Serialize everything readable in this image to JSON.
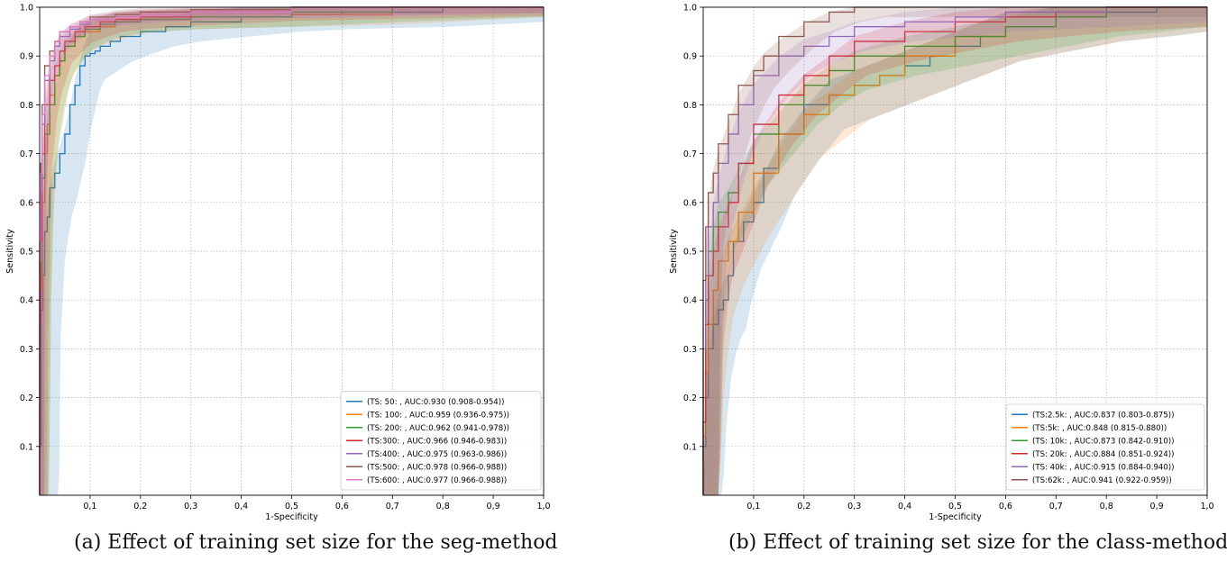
{
  "colors": {
    "series": [
      "#1f77b4",
      "#ff7f0e",
      "#2ca02c",
      "#d62728",
      "#9467bd",
      "#8c564b",
      "#e377c2"
    ],
    "grid": "#b0b0b0",
    "axis": "#000000"
  },
  "chart_data": [
    {
      "id": "a",
      "type": "line",
      "caption": "(a) Effect of training set size for the seg-method",
      "xlabel": "1-Specificity",
      "ylabel": "Sensitivity",
      "xlim": [
        0,
        1.0
      ],
      "ylim": [
        0,
        1.0
      ],
      "xticks": [
        "0,1",
        "0,2",
        "0,3",
        "0,4",
        "0,5",
        "0,6",
        "0,7",
        "0,8",
        "0,9",
        "1,0"
      ],
      "yticks": [
        "0.1",
        "0.2",
        "0.3",
        "0.4",
        "0.5",
        "0.6",
        "0.7",
        "0.8",
        "0.9",
        "1.0"
      ],
      "grid": true,
      "legend_position": "lower-right",
      "series": [
        {
          "name": "(TS: 50: , AUC:0.930 (0.908-0.954))",
          "x": [
            0,
            0.003,
            0.006,
            0.01,
            0.015,
            0.02,
            0.03,
            0.04,
            0.05,
            0.06,
            0.07,
            0.08,
            0.09,
            0.1,
            0.11,
            0.12,
            0.14,
            0.16,
            0.2,
            0.25,
            0.3,
            0.4,
            0.5,
            0.6,
            0.8,
            1.0
          ],
          "y": [
            0,
            0.1,
            0.38,
            0.45,
            0.54,
            0.57,
            0.63,
            0.66,
            0.7,
            0.74,
            0.8,
            0.84,
            0.88,
            0.9,
            0.905,
            0.91,
            0.92,
            0.93,
            0.94,
            0.95,
            0.96,
            0.97,
            0.98,
            0.985,
            0.99,
            1.0
          ],
          "band": [
            0.06,
            0.03
          ]
        },
        {
          "name": "(TS: 100: , AUC:0.959 (0.936-0.975))",
          "x": [
            0,
            0.002,
            0.005,
            0.01,
            0.015,
            0.02,
            0.03,
            0.04,
            0.05,
            0.07,
            0.09,
            0.12,
            0.15,
            0.2,
            0.3,
            0.5,
            0.7,
            1.0
          ],
          "y": [
            0,
            0.16,
            0.42,
            0.6,
            0.7,
            0.76,
            0.82,
            0.86,
            0.89,
            0.92,
            0.94,
            0.95,
            0.96,
            0.97,
            0.975,
            0.98,
            0.985,
            1.0
          ],
          "band": [
            0.03,
            0.02
          ]
        },
        {
          "name": "(TS: 200: , AUC:0.962 (0.941-0.978))",
          "x": [
            0,
            0.002,
            0.005,
            0.01,
            0.02,
            0.03,
            0.04,
            0.05,
            0.07,
            0.09,
            0.12,
            0.15,
            0.2,
            0.3,
            0.5,
            0.7,
            1.0
          ],
          "y": [
            0,
            0.18,
            0.45,
            0.65,
            0.74,
            0.8,
            0.86,
            0.89,
            0.92,
            0.94,
            0.955,
            0.965,
            0.97,
            0.975,
            0.98,
            0.99,
            1.0
          ],
          "band": [
            0.03,
            0.02
          ]
        },
        {
          "name": "(TS:300: , AUC:0.966 (0.946-0.983))",
          "x": [
            0,
            0.002,
            0.005,
            0.01,
            0.02,
            0.03,
            0.04,
            0.05,
            0.07,
            0.09,
            0.12,
            0.15,
            0.2,
            0.3,
            0.5,
            1.0
          ],
          "y": [
            0,
            0.35,
            0.52,
            0.7,
            0.8,
            0.85,
            0.88,
            0.91,
            0.93,
            0.95,
            0.96,
            0.97,
            0.975,
            0.98,
            0.99,
            1.0
          ],
          "band": [
            0.025,
            0.018
          ]
        },
        {
          "name": "(TS:400: , AUC:0.975 (0.963-0.986))",
          "x": [
            0,
            0.002,
            0.005,
            0.01,
            0.02,
            0.03,
            0.04,
            0.06,
            0.08,
            0.1,
            0.15,
            0.2,
            0.3,
            0.5,
            1.0
          ],
          "y": [
            0,
            0.5,
            0.62,
            0.76,
            0.85,
            0.89,
            0.92,
            0.94,
            0.955,
            0.965,
            0.975,
            0.98,
            0.985,
            0.99,
            1.0
          ],
          "band": [
            0.015,
            0.012
          ]
        },
        {
          "name": "(TS:500: , AUC:0.978 (0.966-0.988))",
          "x": [
            0,
            0.002,
            0.005,
            0.01,
            0.02,
            0.03,
            0.04,
            0.06,
            0.08,
            0.1,
            0.15,
            0.2,
            0.3,
            0.5,
            1.0
          ],
          "y": [
            0,
            0.52,
            0.68,
            0.8,
            0.88,
            0.91,
            0.93,
            0.95,
            0.96,
            0.97,
            0.98,
            0.985,
            0.99,
            0.995,
            1.0
          ],
          "band": [
            0.015,
            0.012
          ]
        },
        {
          "name": "(TS:600: , AUC:0.977 (0.966-0.988))",
          "x": [
            0,
            0.002,
            0.005,
            0.01,
            0.02,
            0.03,
            0.04,
            0.06,
            0.08,
            0.1,
            0.15,
            0.2,
            0.3,
            0.5,
            1.0
          ],
          "y": [
            0,
            0.48,
            0.66,
            0.78,
            0.86,
            0.9,
            0.93,
            0.95,
            0.96,
            0.97,
            0.975,
            0.98,
            0.985,
            0.99,
            1.0
          ],
          "band": [
            0.015,
            0.012
          ]
        }
      ]
    },
    {
      "id": "b",
      "type": "line",
      "caption": "(b) Effect of training set size for the class-method",
      "xlabel": "1-Specificity",
      "ylabel": "Sensitivity",
      "xlim": [
        0,
        1.0
      ],
      "ylim": [
        0,
        1.0
      ],
      "xticks": [
        "0,1",
        "0,2",
        "0,3",
        "0,4",
        "0,5",
        "0,6",
        "0,7",
        "0,8",
        "0,9",
        "1,0"
      ],
      "yticks": [
        "0.1",
        "0.2",
        "0.3",
        "0.4",
        "0.5",
        "0.6",
        "0.7",
        "0.8",
        "0.9",
        "1.0"
      ],
      "grid": true,
      "legend_position": "lower-right",
      "series": [
        {
          "name": "(TS:2.5k: , AUC:0.837 (0.803-0.875))",
          "x": [
            0,
            0.005,
            0.01,
            0.02,
            0.03,
            0.04,
            0.05,
            0.06,
            0.08,
            0.1,
            0.12,
            0.15,
            0.2,
            0.25,
            0.3,
            0.35,
            0.4,
            0.45,
            0.5,
            0.55,
            0.6,
            0.7,
            0.8,
            0.9,
            1.0
          ],
          "y": [
            0,
            0.1,
            0.2,
            0.3,
            0.35,
            0.38,
            0.4,
            0.45,
            0.52,
            0.56,
            0.6,
            0.67,
            0.74,
            0.8,
            0.82,
            0.84,
            0.86,
            0.88,
            0.9,
            0.92,
            0.94,
            0.96,
            0.98,
            0.99,
            1.0
          ],
          "band": [
            0.06,
            0.05
          ]
        },
        {
          "name": "(TS:5k: , AUC:0.848 (0.815-0.880))",
          "x": [
            0,
            0.005,
            0.01,
            0.02,
            0.03,
            0.05,
            0.07,
            0.1,
            0.15,
            0.2,
            0.25,
            0.3,
            0.35,
            0.4,
            0.5,
            0.6,
            0.7,
            0.8,
            1.0
          ],
          "y": [
            0,
            0.12,
            0.25,
            0.35,
            0.42,
            0.48,
            0.52,
            0.58,
            0.66,
            0.74,
            0.78,
            0.82,
            0.84,
            0.86,
            0.9,
            0.94,
            0.96,
            0.98,
            1.0
          ],
          "band": [
            0.05,
            0.05
          ]
        },
        {
          "name": "(TS: 10k: , AUC:0.873 (0.842-0.910))",
          "x": [
            0,
            0.005,
            0.01,
            0.02,
            0.03,
            0.05,
            0.07,
            0.1,
            0.15,
            0.2,
            0.25,
            0.3,
            0.4,
            0.5,
            0.6,
            0.7,
            0.8,
            1.0
          ],
          "y": [
            0,
            0.2,
            0.4,
            0.5,
            0.55,
            0.58,
            0.62,
            0.68,
            0.74,
            0.8,
            0.84,
            0.87,
            0.9,
            0.92,
            0.94,
            0.96,
            0.98,
            1.0
          ],
          "band": [
            0.05,
            0.04
          ]
        },
        {
          "name": "(TS: 20k: , AUC:0.884 (0.851-0.924))",
          "x": [
            0,
            0.005,
            0.01,
            0.02,
            0.03,
            0.05,
            0.07,
            0.1,
            0.15,
            0.2,
            0.25,
            0.3,
            0.4,
            0.5,
            0.6,
            0.7,
            0.8,
            1.0
          ],
          "y": [
            0,
            0.15,
            0.35,
            0.45,
            0.5,
            0.55,
            0.6,
            0.68,
            0.76,
            0.82,
            0.86,
            0.9,
            0.93,
            0.95,
            0.97,
            0.98,
            0.99,
            1.0
          ],
          "band": [
            0.05,
            0.04
          ]
        },
        {
          "name": "(TS: 40k: , AUC:0.915 (0.884-0.940))",
          "x": [
            0,
            0.005,
            0.01,
            0.02,
            0.03,
            0.05,
            0.07,
            0.1,
            0.15,
            0.2,
            0.25,
            0.3,
            0.4,
            0.5,
            0.6,
            0.8,
            1.0
          ],
          "y": [
            0,
            0.3,
            0.45,
            0.55,
            0.6,
            0.68,
            0.74,
            0.8,
            0.86,
            0.9,
            0.92,
            0.94,
            0.96,
            0.97,
            0.98,
            0.99,
            1.0
          ],
          "band": [
            0.05,
            0.03
          ]
        },
        {
          "name": "(TS:62k: , AUC:0.941 (0.922-0.959))",
          "x": [
            0,
            0.005,
            0.01,
            0.02,
            0.03,
            0.05,
            0.07,
            0.1,
            0.12,
            0.15,
            0.2,
            0.25,
            0.3,
            0.35,
            0.4,
            1.0
          ],
          "y": [
            0,
            0.44,
            0.55,
            0.62,
            0.66,
            0.72,
            0.78,
            0.84,
            0.87,
            0.9,
            0.94,
            0.97,
            0.99,
            1.0,
            1.0,
            1.0
          ],
          "band": [
            0.05,
            0.02
          ]
        }
      ]
    }
  ]
}
